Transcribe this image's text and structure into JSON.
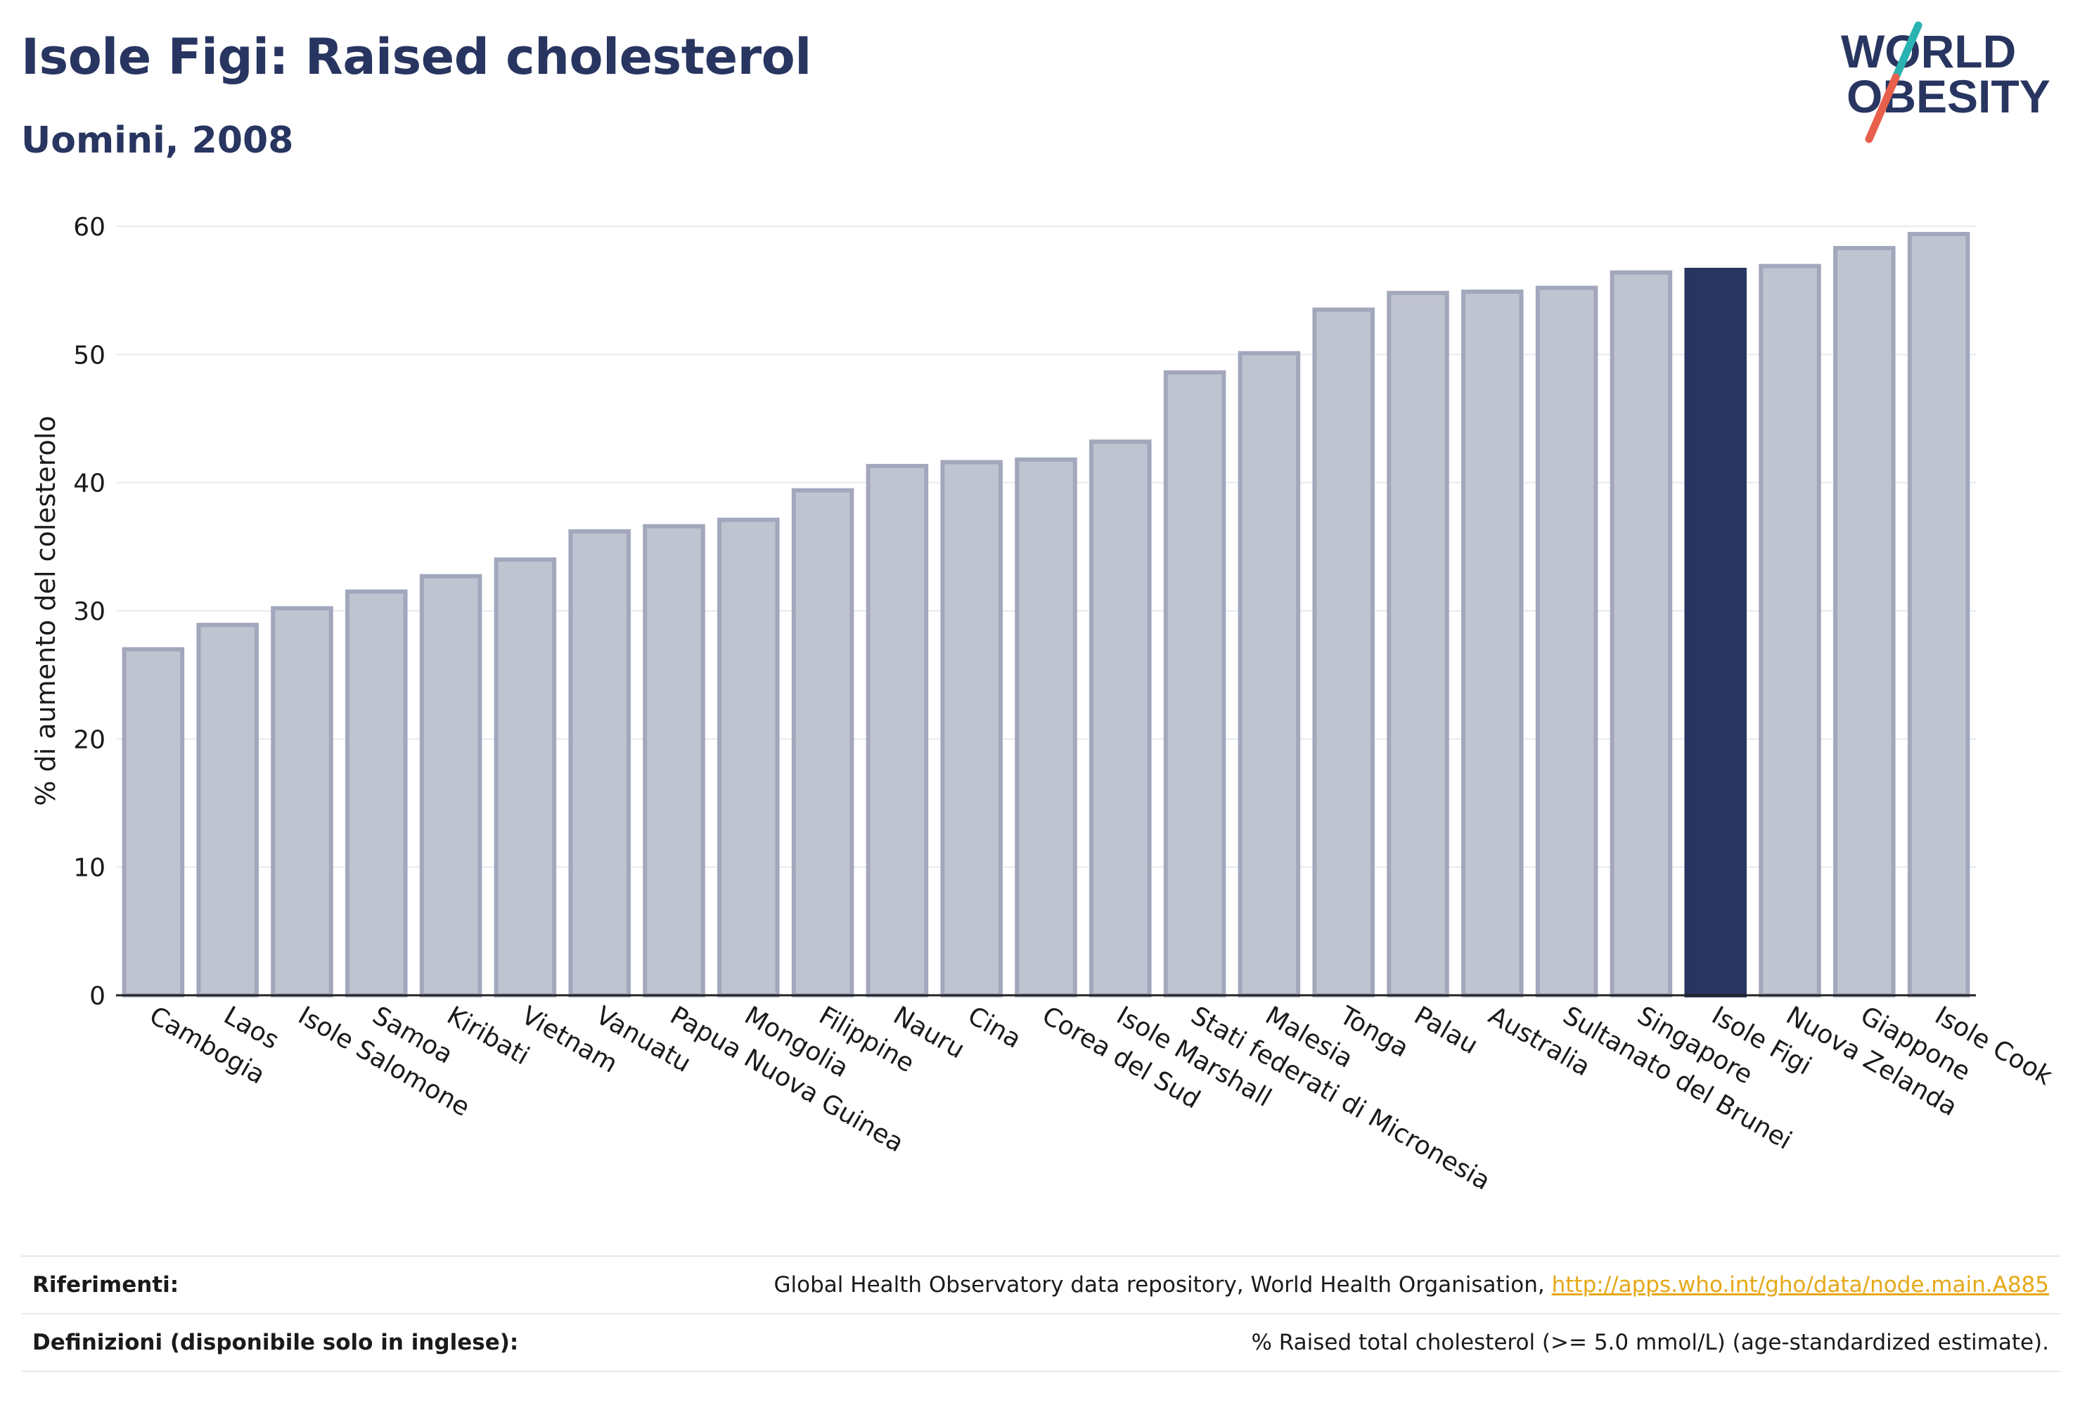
{
  "header": {
    "title": "Isole Figi: Raised cholesterol",
    "subtitle": "Uomini, 2008"
  },
  "logo": {
    "line1": "WORLD",
    "line2": "OBESITY",
    "colors": {
      "text": "#283560",
      "slash_top": "#2bb3b1",
      "slash_bottom": "#e8604c"
    }
  },
  "chart_data": {
    "type": "bar",
    "ylabel": "% di aumento del colesterolo",
    "xlabel": "",
    "ylim": [
      0,
      60
    ],
    "yticks": [
      0,
      10,
      20,
      30,
      40,
      50,
      60
    ],
    "grid": true,
    "highlight": "Isole Figi",
    "colors": {
      "bar": "#c0c3d0",
      "bar_border": "#a2a7bc",
      "highlight": "#283560",
      "grid": "#e8eaef",
      "axis": "#222222"
    },
    "categories": [
      "Cambogia",
      "Laos",
      "Isole Salomone",
      "Samoa",
      "Kiribati",
      "Vietnam",
      "Vanuatu",
      "Papua Nuova Guinea",
      "Mongolia",
      "Filippine",
      "Nauru",
      "Cina",
      "Corea del Sud",
      "Isole Marshall",
      "Stati federati di Micronesia",
      "Malesia",
      "Tonga",
      "Palau",
      "Australia",
      "Sultanato del Brunei",
      "Singapore",
      "Isole Figi",
      "Nuova Zelanda",
      "Giappone",
      "Isole Cook"
    ],
    "values": [
      27.0,
      28.9,
      30.2,
      31.5,
      32.7,
      34.0,
      36.2,
      36.6,
      37.1,
      39.4,
      41.3,
      41.6,
      41.8,
      43.2,
      48.6,
      50.1,
      53.5,
      54.8,
      54.9,
      55.2,
      56.4,
      56.6,
      56.9,
      58.3,
      59.4
    ]
  },
  "footer": {
    "references_label": "Riferimenti:",
    "references_text": "Global Health Observatory data repository, World Health Organisation, ",
    "references_link": "http://apps.who.int/gho/data/node.main.A885",
    "definitions_label": "Definizioni (disponibile solo in inglese):",
    "definitions_text": "% Raised total cholesterol (>= 5.0 mmol/L) (age-standardized estimate)."
  }
}
